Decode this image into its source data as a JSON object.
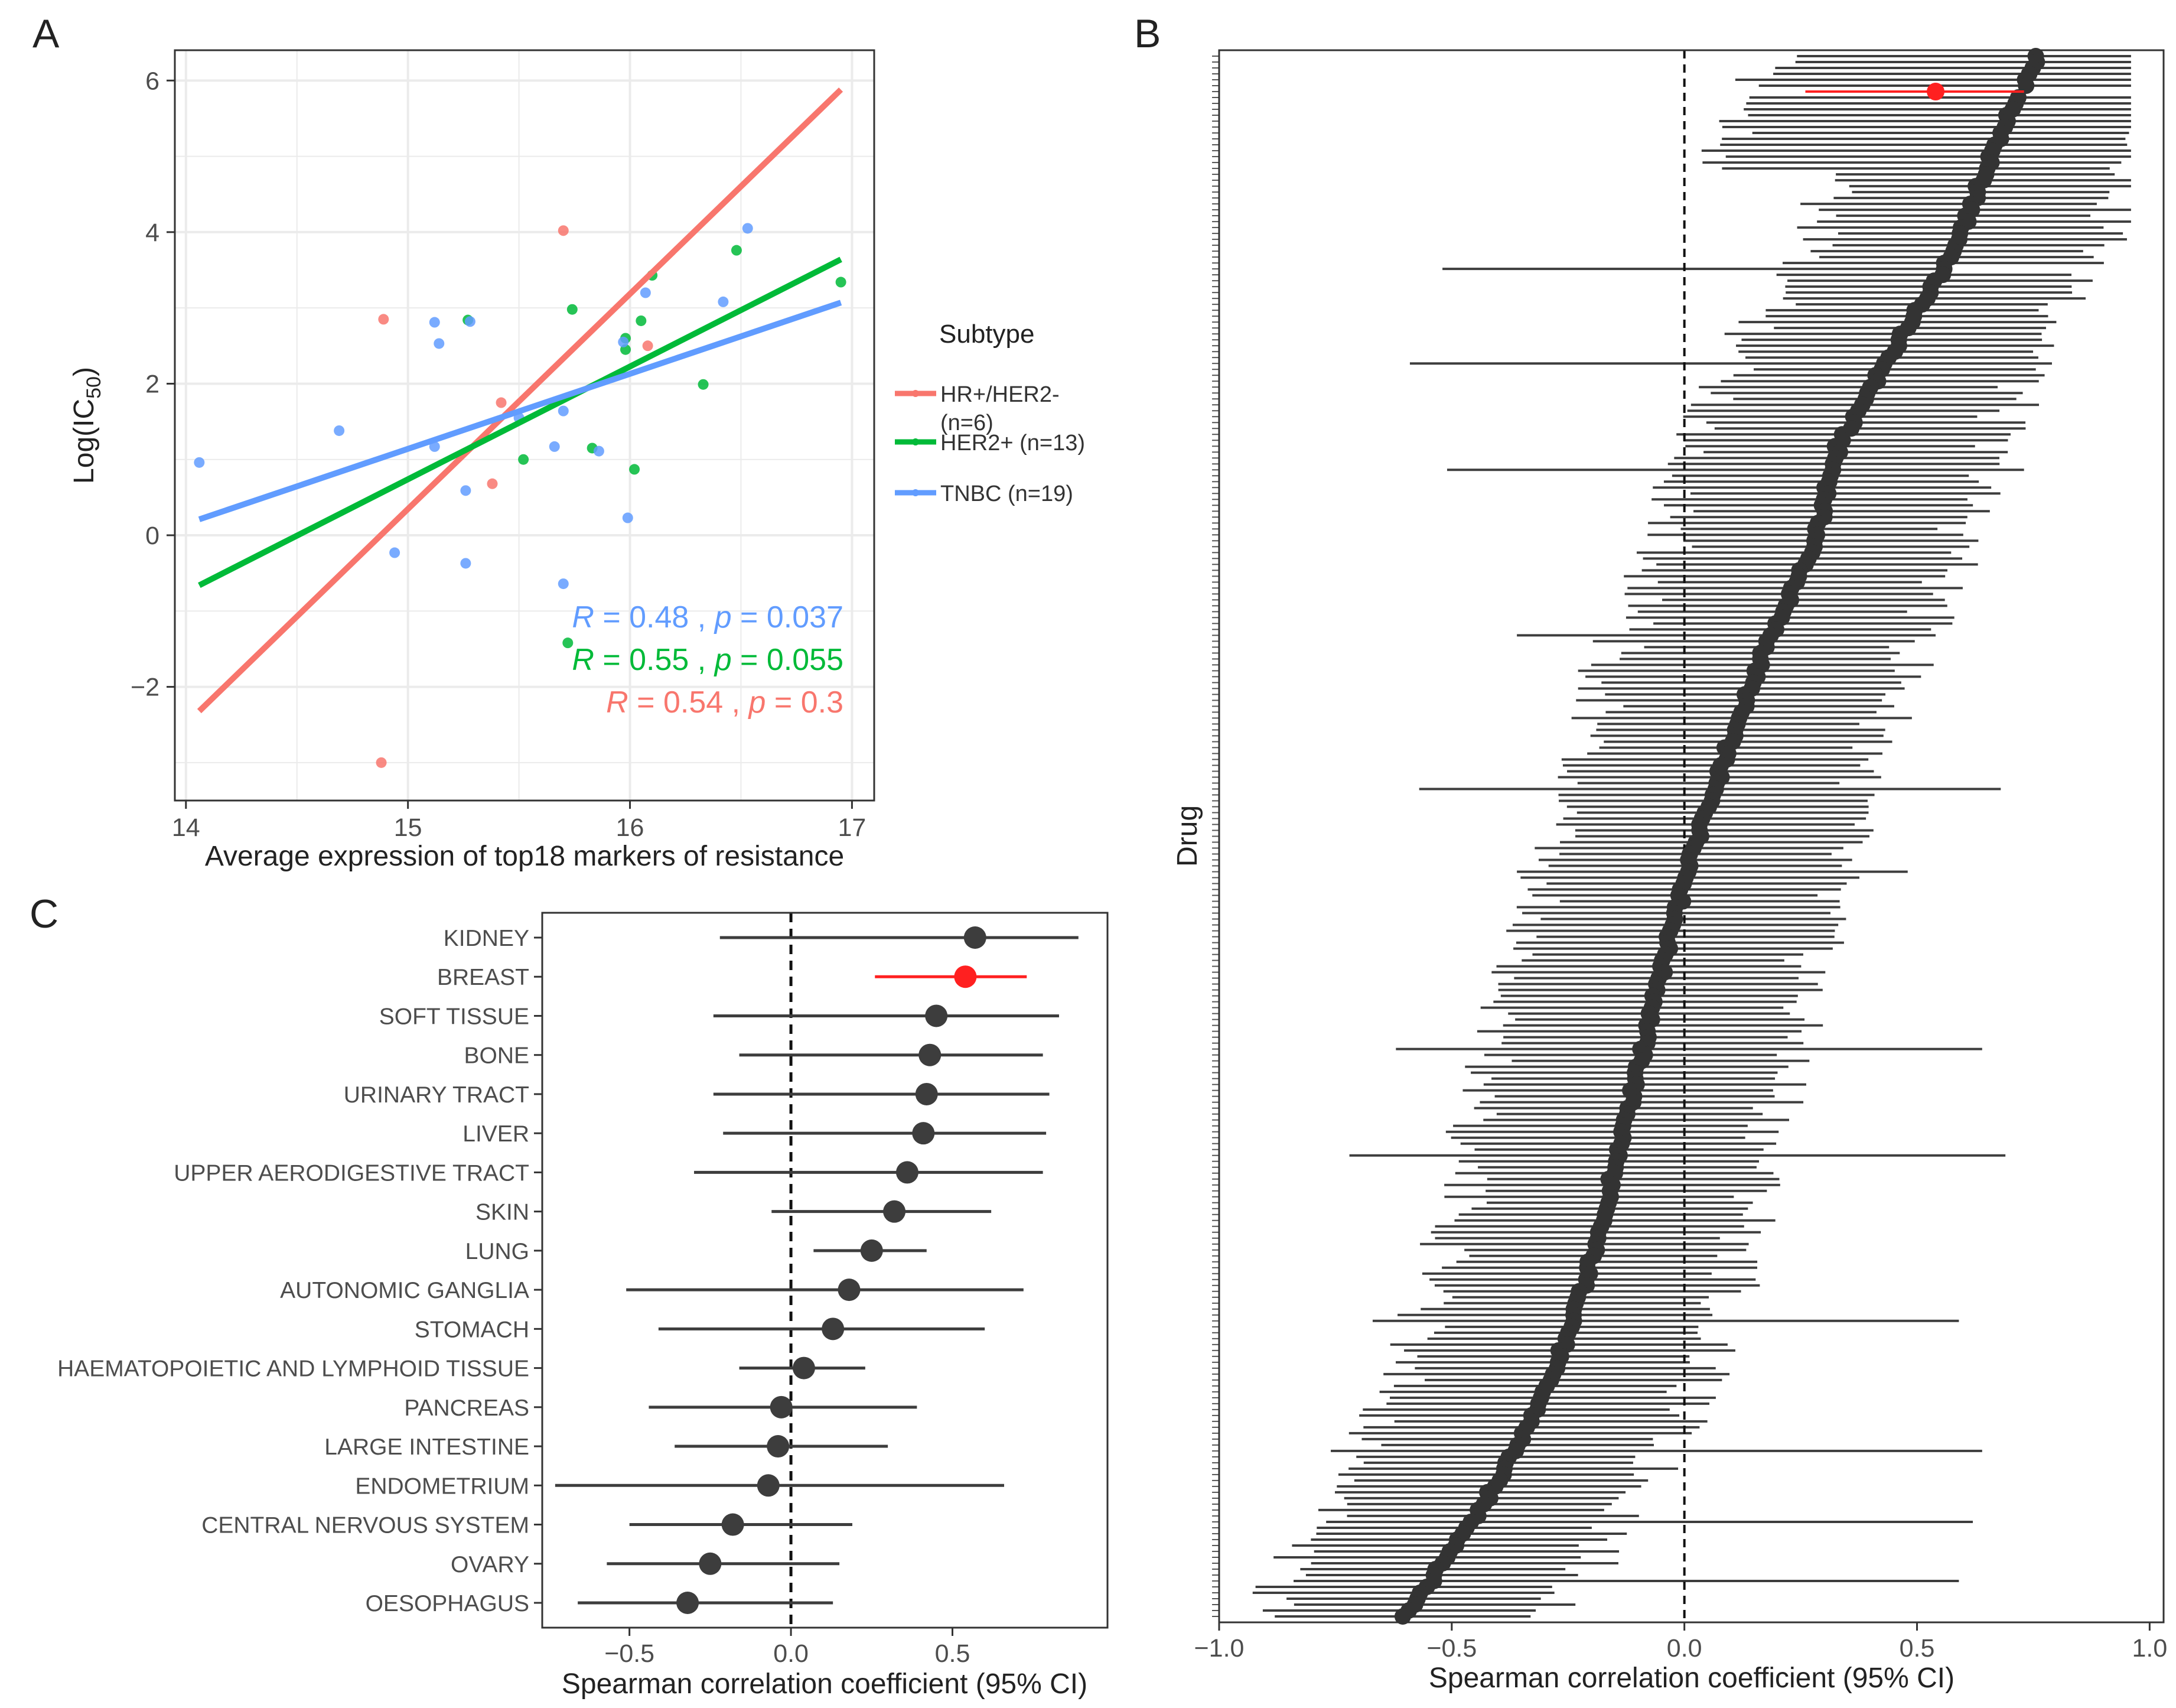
{
  "figure": {
    "panels": [
      "A",
      "B",
      "C"
    ]
  },
  "chart_data": [
    {
      "panel": "A",
      "type": "scatter",
      "title": "",
      "xlabel": "Average expression of top18 markers of resistance",
      "ylabel_main": "Log(IC",
      "ylabel_sub": "50",
      "ylabel_end": ")",
      "xlim": [
        13.95,
        17.1
      ],
      "ylim": [
        -3.5,
        6.4
      ],
      "xticks": [
        14,
        15,
        16,
        17
      ],
      "xtick_labels": [
        "14",
        "15",
        "16",
        "17"
      ],
      "yticks": [
        6,
        4,
        2,
        0,
        -2
      ],
      "ytick_labels": [
        "6",
        "4",
        "2",
        "0",
        "−2"
      ],
      "grid": true,
      "legend": {
        "title": "Subtype",
        "position": "right",
        "entries": [
          {
            "line1": "HR+/HER2-",
            "line2": "(n=6)",
            "color": "#f8766d"
          },
          {
            "line1": "HER2+ (n=13)",
            "line2": "",
            "color": "#00ba38"
          },
          {
            "line1": "TNBC (n=19)",
            "line2": "",
            "color": "#619cff"
          }
        ]
      },
      "series": [
        {
          "name": "HR+/HER2-",
          "color": "#f8766d",
          "points": [
            [
              14.89,
              2.85
            ],
            [
              15.42,
              1.75
            ],
            [
              15.38,
              0.68
            ],
            [
              15.7,
              4.02
            ],
            [
              16.08,
              2.5
            ],
            [
              14.88,
              -3.0
            ]
          ],
          "fit": [
            [
              14.06,
              -2.32
            ],
            [
              16.95,
              5.88
            ]
          ],
          "stat": {
            "R_label": "R",
            "R_value": " = 0.54 , ",
            "p_label": "p",
            "p_value": " = 0.3"
          }
        },
        {
          "name": "HER2+",
          "color": "#00ba38",
          "points": [
            [
              15.27,
              2.84
            ],
            [
              15.52,
              1.0
            ],
            [
              15.74,
              2.98
            ],
            [
              15.83,
              1.15
            ],
            [
              15.98,
              2.6
            ],
            [
              16.02,
              0.87
            ],
            [
              16.05,
              2.83
            ],
            [
              16.1,
              3.43
            ],
            [
              16.33,
              1.99
            ],
            [
              16.48,
              3.76
            ],
            [
              16.95,
              3.34
            ],
            [
              15.72,
              -1.42
            ],
            [
              15.98,
              2.45
            ]
          ],
          "fit": [
            [
              14.06,
              -0.66
            ],
            [
              16.95,
              3.64
            ]
          ],
          "stat": {
            "R_label": "R",
            "R_value": " = 0.55 , ",
            "p_label": "p",
            "p_value": " = 0.055"
          }
        },
        {
          "name": "TNBC",
          "color": "#619cff",
          "points": [
            [
              14.06,
              0.96
            ],
            [
              14.69,
              1.38
            ],
            [
              14.94,
              -0.23
            ],
            [
              15.12,
              1.17
            ],
            [
              15.12,
              2.81
            ],
            [
              15.14,
              2.53
            ],
            [
              15.26,
              -0.37
            ],
            [
              15.26,
              0.59
            ],
            [
              15.28,
              2.82
            ],
            [
              15.66,
              1.17
            ],
            [
              15.7,
              -0.64
            ],
            [
              15.7,
              1.64
            ],
            [
              15.86,
              1.11
            ],
            [
              15.99,
              0.23
            ],
            [
              16.07,
              3.2
            ],
            [
              16.42,
              3.08
            ],
            [
              16.53,
              4.05
            ],
            [
              15.97,
              2.55
            ],
            [
              15.5,
              1.55
            ]
          ],
          "fit": [
            [
              14.06,
              0.21
            ],
            [
              16.95,
              3.07
            ]
          ],
          "stat": {
            "R_label": "R",
            "R_value": " = 0.48 , ",
            "p_label": "p",
            "p_value": " = 0.037"
          }
        }
      ]
    },
    {
      "panel": "B",
      "type": "forest",
      "title": "",
      "xlabel": "Spearman correlation coefficient (95% CI)",
      "ylabel": "Drug",
      "xlim": [
        -1.0,
        1.03
      ],
      "xticks": [
        -1.0,
        -0.5,
        0.0,
        0.5,
        1.0
      ],
      "xtick_labels": [
        "−1.0",
        "−0.5",
        "0.0",
        "0.5",
        "1.0"
      ],
      "n_drugs": 265,
      "reference_line": 0.0,
      "highlight": {
        "label": "BREAST",
        "rank": 6,
        "estimate": 0.54,
        "lower": 0.26,
        "upper": 0.73,
        "color": "#ff2020"
      },
      "estimate_quantiles": [
        0.76,
        0.66,
        0.58,
        0.45,
        0.33,
        0.28,
        0.18,
        0.1,
        0.03,
        -0.03,
        -0.08,
        -0.13,
        -0.18,
        -0.24,
        -0.33,
        -0.45,
        -0.6
      ],
      "ci_half_width": 0.32,
      "outlier_ci": [
        {
          "rank": 36,
          "lower": -0.52,
          "upper": 0.55
        },
        {
          "rank": 52,
          "lower": -0.59,
          "upper": 0.79
        },
        {
          "rank": 70,
          "lower": -0.51,
          "upper": 0.73
        },
        {
          "rank": 98,
          "lower": -0.36,
          "upper": 0.54
        },
        {
          "rank": 124,
          "lower": -0.57,
          "upper": 0.68
        },
        {
          "rank": 138,
          "lower": -0.36,
          "upper": 0.48
        },
        {
          "rank": 168,
          "lower": -0.62,
          "upper": 0.64
        },
        {
          "rank": 186,
          "lower": -0.72,
          "upper": 0.69
        },
        {
          "rank": 214,
          "lower": -0.67,
          "upper": 0.59
        },
        {
          "rank": 236,
          "lower": -0.76,
          "upper": 0.64
        },
        {
          "rank": 248,
          "lower": -0.77,
          "upper": 0.62
        },
        {
          "rank": 258,
          "lower": -0.84,
          "upper": 0.59
        }
      ]
    },
    {
      "panel": "C",
      "type": "forest",
      "title": "",
      "xlabel": "Spearman correlation coefficient (95% CI)",
      "ylabel": "",
      "xlim": [
        -0.77,
        0.98
      ],
      "xticks": [
        -0.5,
        0.0,
        0.5
      ],
      "xtick_labels": [
        "−0.5",
        "0.0",
        "0.5"
      ],
      "reference_line": 0.0,
      "highlight_color": "#ff2020",
      "default_color": "#3d3d3d",
      "rows": [
        {
          "label": "KIDNEY",
          "estimate": 0.57,
          "lower": -0.22,
          "upper": 0.89,
          "highlight": false
        },
        {
          "label": "BREAST",
          "estimate": 0.54,
          "lower": 0.26,
          "upper": 0.73,
          "highlight": true
        },
        {
          "label": "SOFT TISSUE",
          "estimate": 0.45,
          "lower": -0.24,
          "upper": 0.83,
          "highlight": false
        },
        {
          "label": "BONE",
          "estimate": 0.43,
          "lower": -0.16,
          "upper": 0.78,
          "highlight": false
        },
        {
          "label": "URINARY TRACT",
          "estimate": 0.42,
          "lower": -0.24,
          "upper": 0.8,
          "highlight": false
        },
        {
          "label": "LIVER",
          "estimate": 0.41,
          "lower": -0.21,
          "upper": 0.79,
          "highlight": false
        },
        {
          "label": "UPPER AERODIGESTIVE TRACT",
          "estimate": 0.36,
          "lower": -0.3,
          "upper": 0.78,
          "highlight": false
        },
        {
          "label": "SKIN",
          "estimate": 0.32,
          "lower": -0.06,
          "upper": 0.62,
          "highlight": false
        },
        {
          "label": "LUNG",
          "estimate": 0.25,
          "lower": 0.07,
          "upper": 0.42,
          "highlight": false
        },
        {
          "label": "AUTONOMIC GANGLIA",
          "estimate": 0.18,
          "lower": -0.51,
          "upper": 0.72,
          "highlight": false
        },
        {
          "label": "STOMACH",
          "estimate": 0.13,
          "lower": -0.41,
          "upper": 0.6,
          "highlight": false
        },
        {
          "label": "HAEMATOPOIETIC AND LYMPHOID TISSUE",
          "estimate": 0.04,
          "lower": -0.16,
          "upper": 0.23,
          "highlight": false
        },
        {
          "label": "PANCREAS",
          "estimate": -0.03,
          "lower": -0.44,
          "upper": 0.39,
          "highlight": false
        },
        {
          "label": "LARGE INTESTINE",
          "estimate": -0.04,
          "lower": -0.36,
          "upper": 0.3,
          "highlight": false
        },
        {
          "label": "ENDOMETRIUM",
          "estimate": -0.07,
          "lower": -0.73,
          "upper": 0.66,
          "highlight": false
        },
        {
          "label": "CENTRAL NERVOUS SYSTEM",
          "estimate": -0.18,
          "lower": -0.5,
          "upper": 0.19,
          "highlight": false
        },
        {
          "label": "OVARY",
          "estimate": -0.25,
          "lower": -0.57,
          "upper": 0.15,
          "highlight": false
        },
        {
          "label": "OESOPHAGUS",
          "estimate": -0.32,
          "lower": -0.66,
          "upper": 0.13,
          "highlight": false
        }
      ]
    }
  ]
}
